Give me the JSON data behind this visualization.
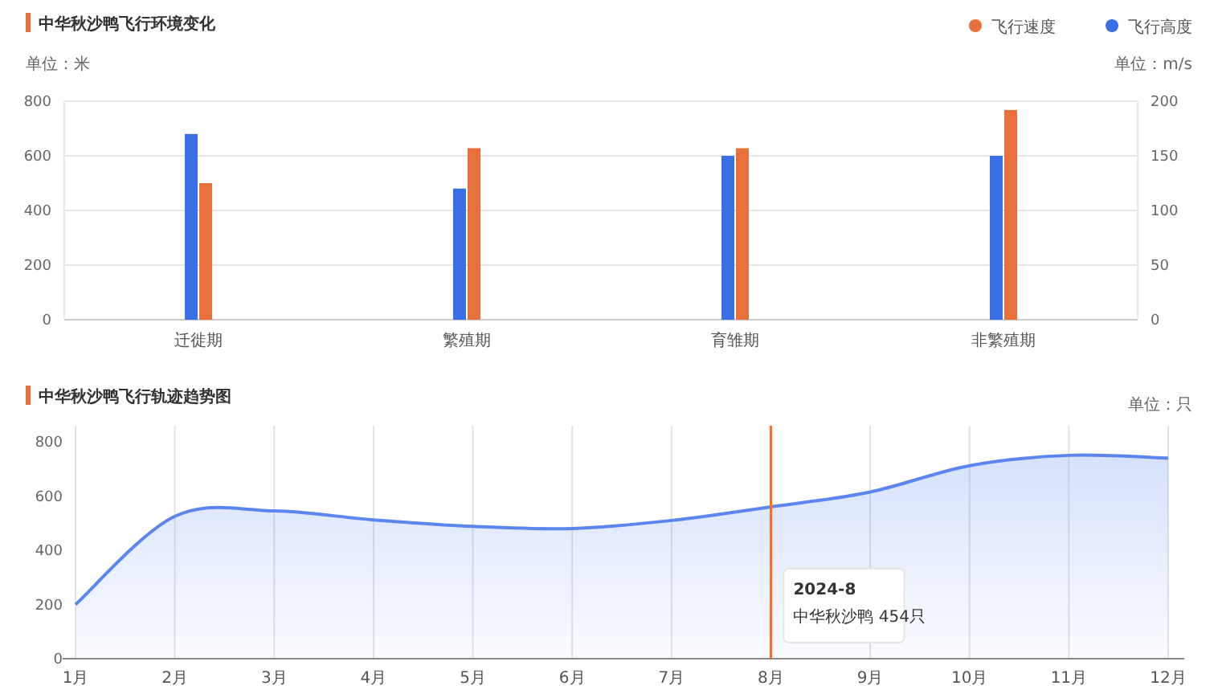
{
  "chart_data": [
    {
      "type": "bar",
      "title": "中华秋沙鸭飞行环境变化",
      "ylabel": "单位：米",
      "y2label": "单位：m/s",
      "categories": [
        "迁徙期",
        "繁殖期",
        "育雏期",
        "非繁殖期"
      ],
      "series": [
        {
          "name": "飞行速度",
          "color": "#e8703a",
          "axis": "y2",
          "values": [
            125,
            157,
            157,
            192
          ]
        },
        {
          "name": "飞行高度",
          "color": "#3b6fe6",
          "values": [
            680,
            480,
            600,
            600
          ]
        }
      ],
      "ylim": [
        0,
        800
      ],
      "yticks": [
        0,
        200,
        400,
        600,
        800
      ],
      "y2lim": [
        0,
        200
      ],
      "y2ticks": [
        0,
        50,
        100,
        150,
        200
      ],
      "grid": "y",
      "legend": "top right"
    },
    {
      "type": "area",
      "title": "中华秋沙鸭飞行轨迹趋势图",
      "ylabel": "单位：只",
      "categories": [
        "1月",
        "2月",
        "3月",
        "4月",
        "5月",
        "6月",
        "7月",
        "8月",
        "9月",
        "10月",
        "11月",
        "12月"
      ],
      "series": [
        {
          "color": "#5b86f0",
          "values": [
            200,
            525,
            545,
            512,
            488,
            480,
            510,
            560,
            615,
            712,
            750,
            740
          ]
        }
      ],
      "ylim": [
        0,
        800
      ],
      "yticks": [
        0,
        200,
        400,
        600,
        800
      ],
      "grid": "x",
      "ref_lines": [
        {
          "axis": "x",
          "value": "8月",
          "color": "#e8703a"
        }
      ],
      "annotations": [
        "2024-8",
        "中华秋沙鸭  454只"
      ]
    }
  ]
}
